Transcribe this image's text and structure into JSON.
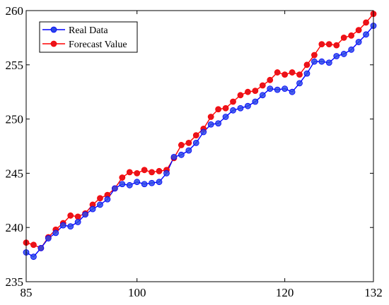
{
  "chart_data": {
    "type": "line",
    "title": "",
    "xlabel": "",
    "ylabel": "",
    "xlim": [
      85,
      132
    ],
    "ylim": [
      235,
      260
    ],
    "xticks": [
      85,
      100,
      120,
      132
    ],
    "yticks": [
      235,
      240,
      245,
      250,
      255,
      260
    ],
    "grid": false,
    "legend_position": "top-left",
    "x": [
      85,
      86,
      87,
      88,
      89,
      90,
      91,
      92,
      93,
      94,
      95,
      96,
      97,
      98,
      99,
      100,
      101,
      102,
      103,
      104,
      105,
      106,
      107,
      108,
      109,
      110,
      111,
      112,
      113,
      114,
      115,
      116,
      117,
      118,
      119,
      120,
      121,
      122,
      123,
      124,
      125,
      126,
      127,
      128,
      129,
      130,
      131,
      132
    ],
    "series": [
      {
        "name": "Real Data",
        "color": "#0000ff",
        "marker_color": "#2a48e6",
        "values": [
          237.7,
          237.3,
          238.1,
          239.0,
          239.5,
          240.2,
          240.1,
          240.5,
          241.2,
          241.7,
          242.1,
          242.6,
          243.6,
          244.0,
          243.9,
          244.2,
          244.0,
          244.1,
          244.2,
          245.0,
          246.5,
          246.7,
          247.1,
          247.8,
          248.8,
          249.5,
          249.6,
          250.2,
          250.8,
          251.0,
          251.2,
          251.6,
          252.2,
          252.8,
          252.7,
          252.8,
          252.5,
          253.3,
          254.2,
          255.3,
          255.3,
          255.2,
          255.8,
          256.0,
          256.4,
          257.1,
          257.8,
          258.6
        ]
      },
      {
        "name": "Forecast Value",
        "color": "#ff0000",
        "marker_color": "#e8141c",
        "values": [
          238.6,
          238.4,
          238.1,
          239.1,
          239.8,
          240.4,
          241.1,
          241.0,
          241.3,
          242.1,
          242.7,
          243.0,
          243.6,
          244.6,
          245.1,
          245.0,
          245.3,
          245.1,
          245.2,
          245.3,
          246.4,
          247.6,
          247.8,
          248.5,
          249.1,
          250.2,
          250.9,
          251.0,
          251.6,
          252.2,
          252.5,
          252.6,
          253.1,
          253.6,
          254.3,
          254.1,
          254.3,
          254.1,
          255.0,
          255.9,
          256.9,
          256.9,
          256.8,
          257.5,
          257.7,
          258.2,
          258.9,
          259.7
        ]
      }
    ]
  }
}
